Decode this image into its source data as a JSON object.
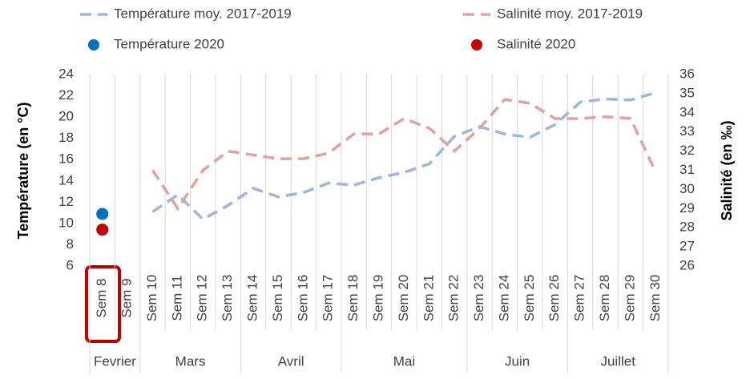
{
  "chart_data": {
    "type": "line",
    "y_label": "Température  (en °C)",
    "y2_label": "Salinité (en ‰)",
    "categories": [
      "Sem 8",
      "Sem 9",
      "Sem 10",
      "Sem 11",
      "Sem 12",
      "Sem 13",
      "Sem 14",
      "Sem 15",
      "Sem 16",
      "Sem 17",
      "Sem 18",
      "Sem 19",
      "Sem 20",
      "Sem 21",
      "Sem 22",
      "Sem 23",
      "Sem 24",
      "Sem 25",
      "Sem 26",
      "Sem 27",
      "Sem 28",
      "Sem 29",
      "Sem 30"
    ],
    "x_groups": [
      {
        "label": "Fevrier",
        "span": 2
      },
      {
        "label": "Mars",
        "span": 4
      },
      {
        "label": "Avril",
        "span": 4
      },
      {
        "label": "Mai",
        "span": 5
      },
      {
        "label": "Juin",
        "span": 4
      },
      {
        "label": "Juillet",
        "span": 4
      }
    ],
    "series": [
      {
        "name": "Température moy. 2017-2019",
        "color": "#9db6db",
        "style": "dashed",
        "values": [
          null,
          null,
          11.1,
          12.7,
          10.4,
          11.7,
          13.3,
          12.5,
          12.9,
          13.8,
          13.6,
          14.3,
          14.8,
          15.6,
          18.2,
          19.1,
          18.4,
          18.1,
          19.3,
          21.4,
          21.7,
          21.6,
          22.3
        ]
      },
      {
        "name": "Salinité moy. 2017-2019",
        "color": "#e0a3a1",
        "style": "dashed",
        "axis": "y2",
        "values": [
          null,
          null,
          31.0,
          29.0,
          31.0,
          32.0,
          31.8,
          31.6,
          31.6,
          31.9,
          32.9,
          32.9,
          33.7,
          33.2,
          32.0,
          33.2,
          34.7,
          34.5,
          33.7,
          33.7,
          33.8,
          33.7,
          30.9
        ]
      },
      {
        "name": "Température 2020",
        "color": "#0070c0",
        "style": "marker",
        "values": [
          10.9,
          null,
          null,
          null,
          null,
          null,
          null,
          null,
          null,
          null,
          null,
          null,
          null,
          null,
          null,
          null,
          null,
          null,
          null,
          null,
          null,
          null,
          null
        ]
      },
      {
        "name": "Salinité 2020",
        "color": "#c00000",
        "style": "marker",
        "axis": "y2",
        "values": [
          27.9,
          null,
          null,
          null,
          null,
          null,
          null,
          null,
          null,
          null,
          null,
          null,
          null,
          null,
          null,
          null,
          null,
          null,
          null,
          null,
          null,
          null,
          null
        ]
      }
    ],
    "ylim": [
      6,
      24
    ],
    "yticks": [
      6,
      8,
      10,
      12,
      14,
      16,
      18,
      20,
      22,
      24
    ],
    "y2lim": [
      26,
      36
    ],
    "y2ticks": [
      26,
      27,
      28,
      29,
      30,
      31,
      32,
      33,
      34,
      35,
      36
    ],
    "grid": "x"
  }
}
